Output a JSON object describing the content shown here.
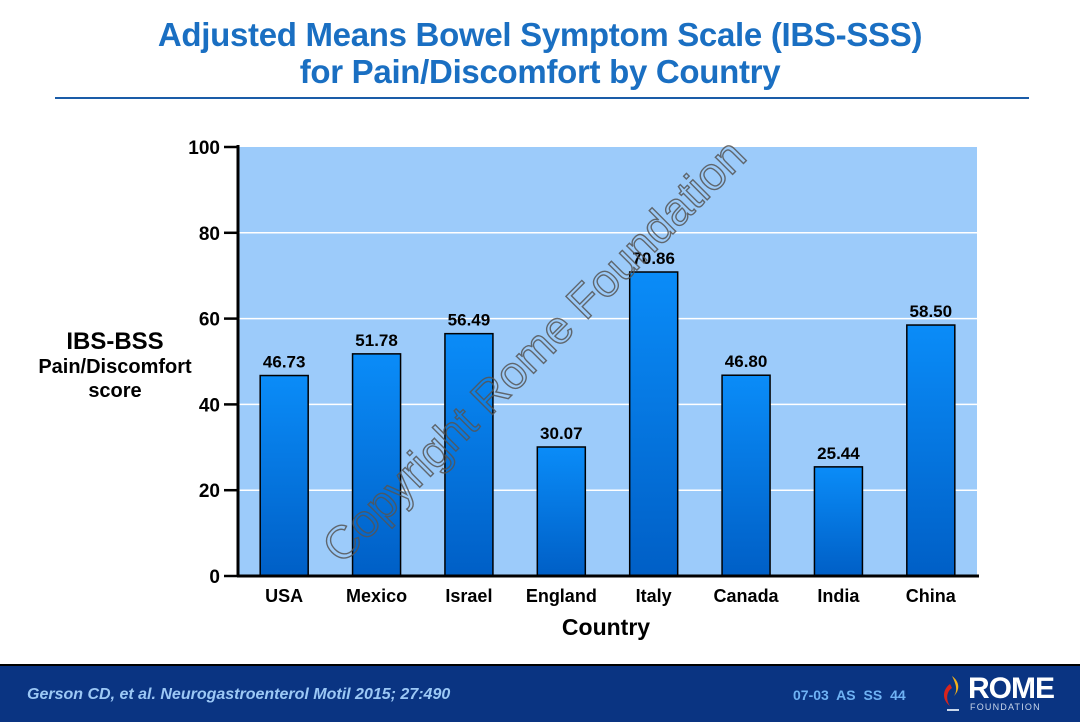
{
  "title": {
    "line1": "Adjusted Means Bowel Symptom Scale (IBS-SSS)",
    "line2": "for Pain/Discomfort by Country"
  },
  "chart_data": {
    "type": "bar",
    "title": "Adjusted Means Bowel Symptom Scale (IBS-SSS) for Pain/Discomfort by Country",
    "categories": [
      "USA",
      "Mexico",
      "Israel",
      "England",
      "Italy",
      "Canada",
      "India",
      "China"
    ],
    "values": [
      46.73,
      51.78,
      56.49,
      30.07,
      70.86,
      46.8,
      25.44,
      58.5
    ],
    "data_labels": [
      "46.73",
      "51.78",
      "56.49",
      "30.07",
      "70.86",
      "46.80",
      "25.44",
      "58.50"
    ],
    "xlabel": "Country",
    "ylabel": [
      "IBS-BSS",
      "Pain/Discomfort",
      "score"
    ],
    "ylim": [
      0,
      100
    ],
    "yticks": [
      0,
      20,
      40,
      60,
      80,
      100
    ],
    "grid": true,
    "colors": {
      "bar": "#0a84f0",
      "bar_dark": "#0060c8",
      "plot_bg": "#9ccbfa",
      "grid": "#ffffff"
    }
  },
  "watermark": "Copyright Rome Foundation",
  "footer": {
    "citation": "Gerson CD, et al.  Neurogastroenterol Motil 2015;  27:490",
    "slide_code": "07-03  AS  SS 44",
    "logo_name": "ROME",
    "logo_sub": "FOUNDATION"
  }
}
